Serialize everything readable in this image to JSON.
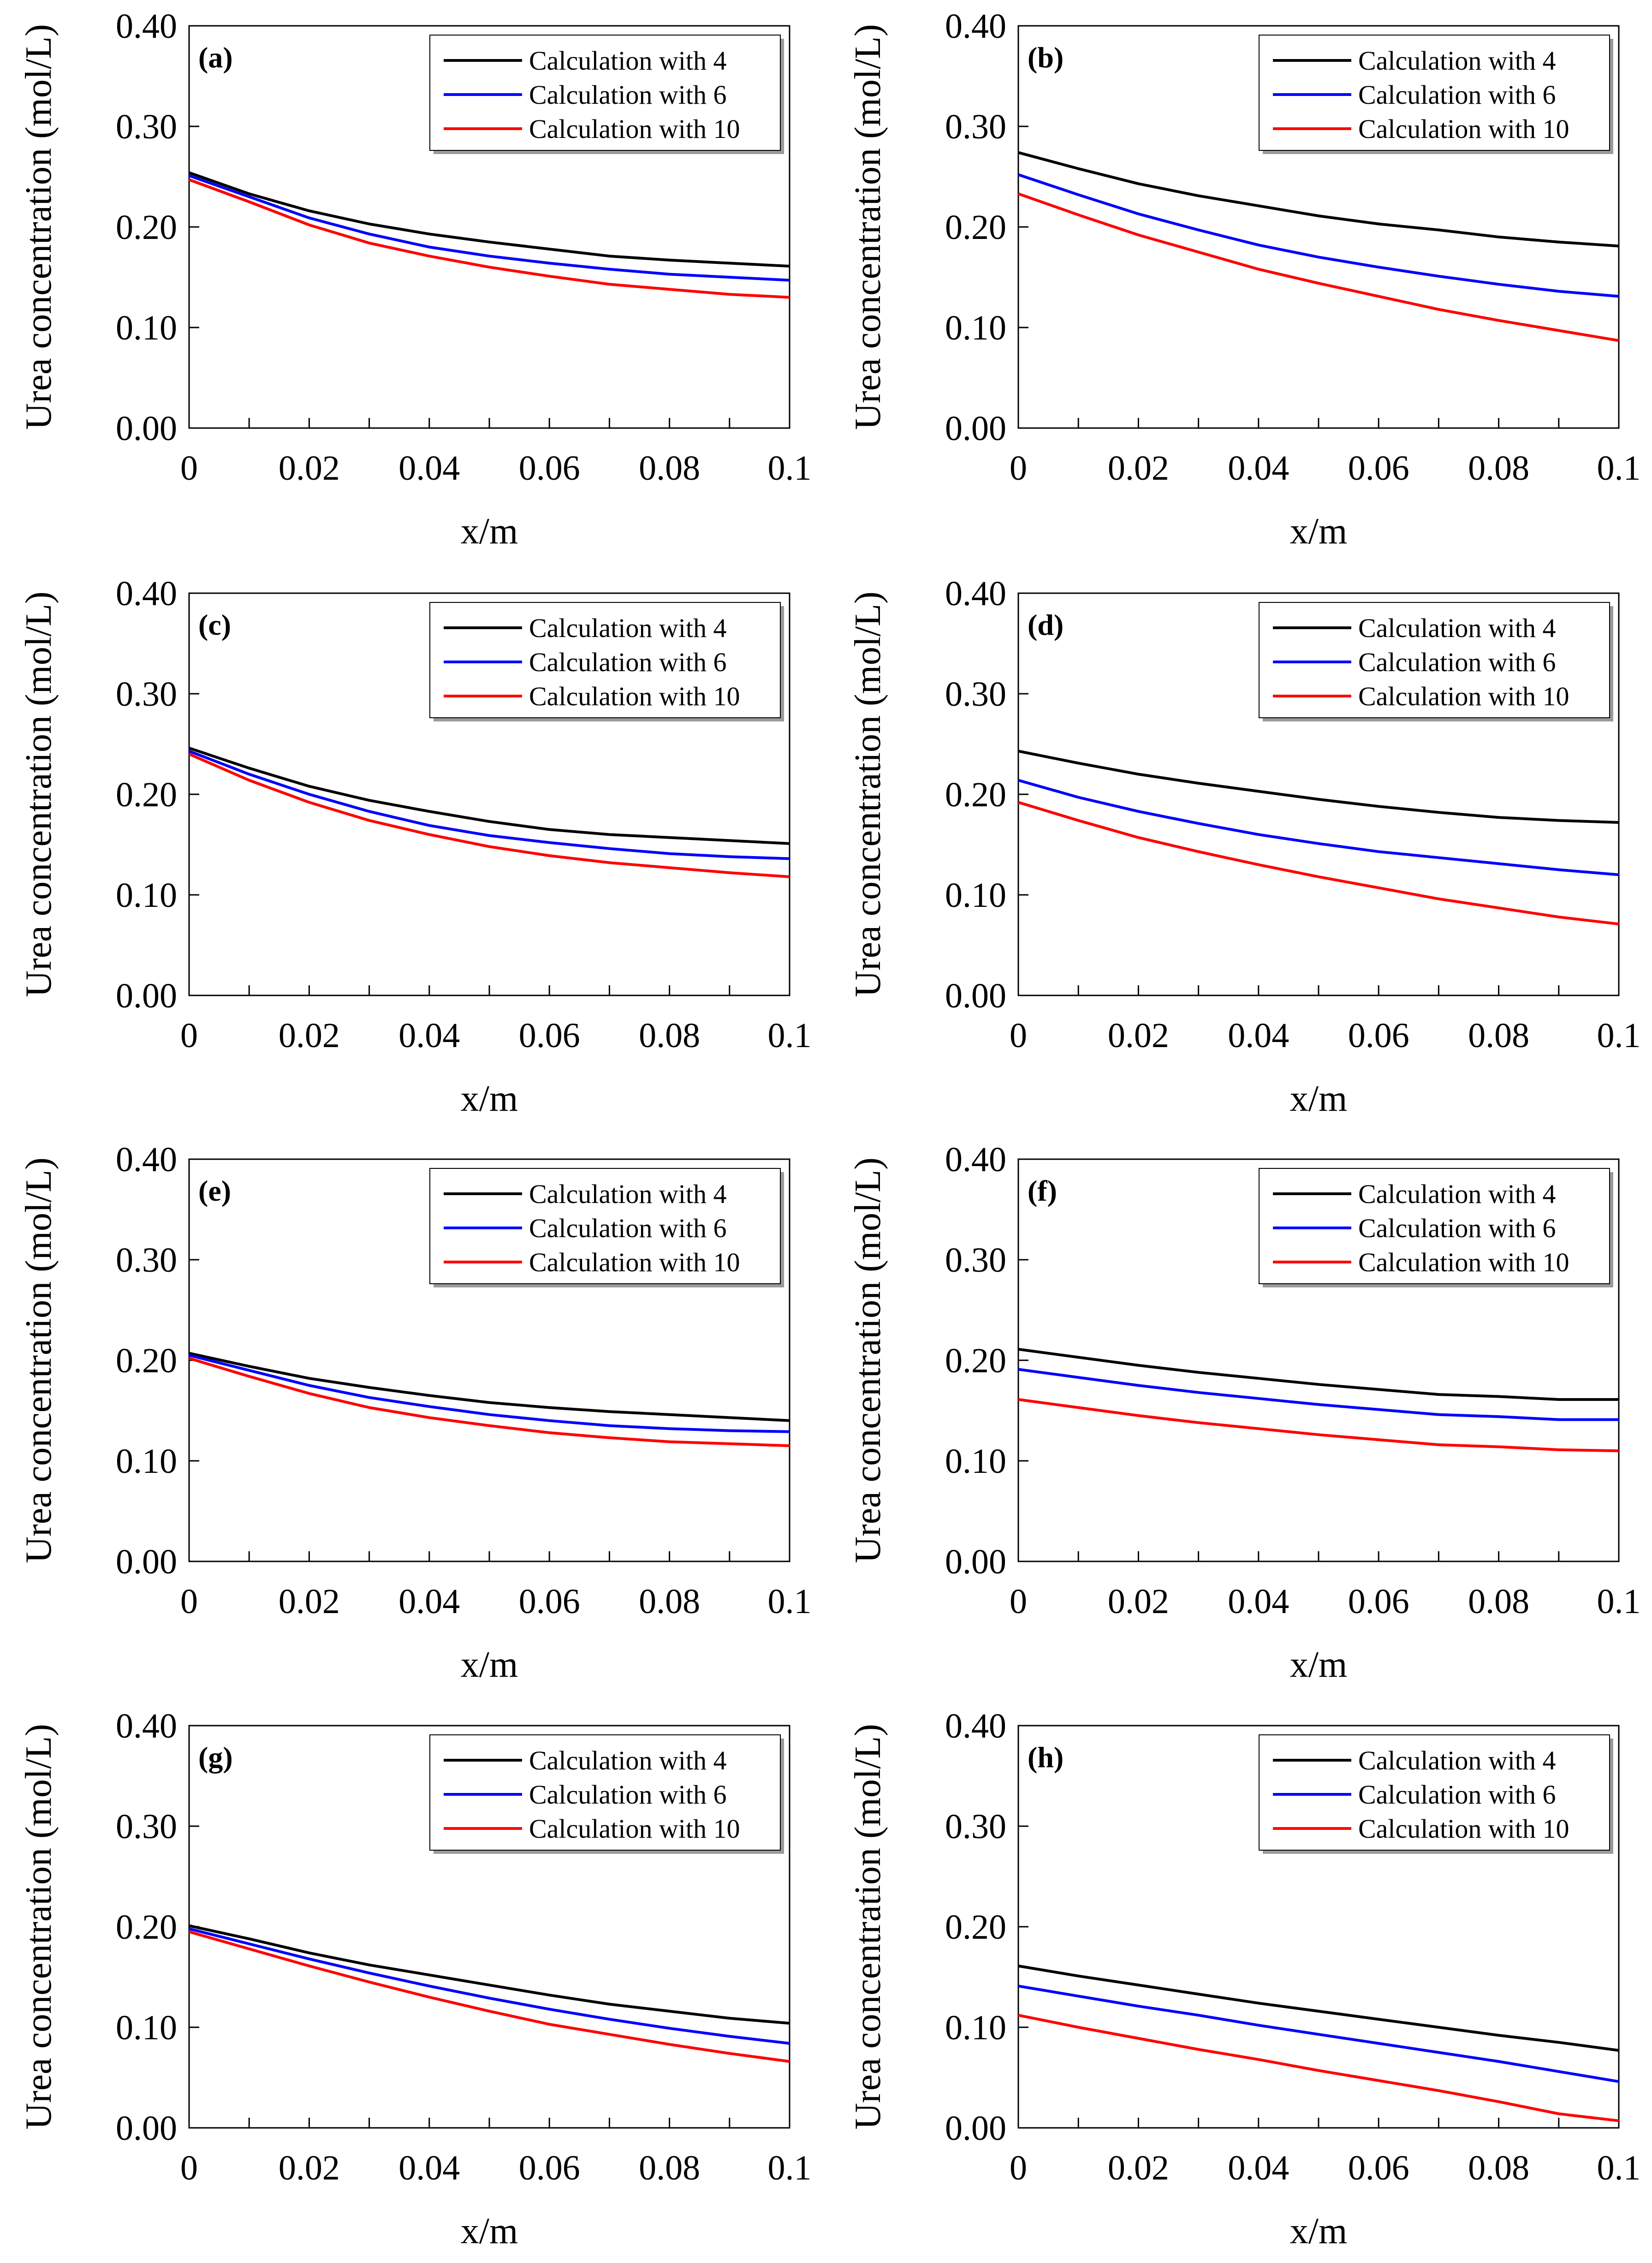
{
  "chart_data": [
    {
      "type": "line",
      "panel_label": "(a)",
      "xlabel": "x/m",
      "ylabel": "Urea concentration (mol/L)",
      "x_ticks": [
        "0",
        "0.02",
        "0.04",
        "0.06",
        "0.08",
        "0.1"
      ],
      "y_ticks": [
        "0.00",
        "0.10",
        "0.20",
        "0.30",
        "0.40"
      ],
      "xlim": [
        0,
        0.1
      ],
      "ylim": [
        0,
        0.4
      ],
      "legend_position": "top-right",
      "x": [
        0,
        0.01,
        0.02,
        0.03,
        0.04,
        0.05,
        0.06,
        0.07,
        0.08,
        0.09,
        0.1
      ],
      "series": [
        {
          "name": "Calculation with 4",
          "color": "#000000",
          "values": [
            0.254,
            0.233,
            0.216,
            0.203,
            0.193,
            0.185,
            0.178,
            0.171,
            0.167,
            0.164,
            0.161
          ]
        },
        {
          "name": "Calculation with 6",
          "color": "#0000ff",
          "values": [
            0.251,
            0.23,
            0.209,
            0.193,
            0.18,
            0.171,
            0.164,
            0.158,
            0.153,
            0.15,
            0.147
          ]
        },
        {
          "name": "Calculation with 10",
          "color": "#ff0000",
          "values": [
            0.247,
            0.225,
            0.202,
            0.184,
            0.171,
            0.16,
            0.151,
            0.143,
            0.138,
            0.133,
            0.13
          ]
        }
      ]
    },
    {
      "type": "line",
      "panel_label": "(b)",
      "xlabel": "x/m",
      "ylabel": "Urea concentration (mol/L)",
      "x_ticks": [
        "0",
        "0.02",
        "0.04",
        "0.06",
        "0.08",
        "0.1"
      ],
      "y_ticks": [
        "0.00",
        "0.10",
        "0.20",
        "0.30",
        "0.40"
      ],
      "xlim": [
        0,
        0.1
      ],
      "ylim": [
        0,
        0.4
      ],
      "legend_position": "top-right",
      "x": [
        0,
        0.01,
        0.02,
        0.03,
        0.04,
        0.05,
        0.06,
        0.07,
        0.08,
        0.09,
        0.1
      ],
      "series": [
        {
          "name": "Calculation with 4",
          "color": "#000000",
          "values": [
            0.274,
            0.258,
            0.243,
            0.231,
            0.221,
            0.211,
            0.203,
            0.197,
            0.19,
            0.185,
            0.181
          ]
        },
        {
          "name": "Calculation with 6",
          "color": "#0000ff",
          "values": [
            0.252,
            0.232,
            0.213,
            0.197,
            0.182,
            0.17,
            0.16,
            0.151,
            0.143,
            0.136,
            0.131
          ]
        },
        {
          "name": "Calculation with 10",
          "color": "#ff0000",
          "values": [
            0.233,
            0.212,
            0.192,
            0.175,
            0.158,
            0.144,
            0.131,
            0.118,
            0.107,
            0.097,
            0.087
          ]
        }
      ]
    },
    {
      "type": "line",
      "panel_label": "(c)",
      "xlabel": "x/m",
      "ylabel": "Urea concentration (mol/L)",
      "x_ticks": [
        "0",
        "0.02",
        "0.04",
        "0.06",
        "0.08",
        "0.1"
      ],
      "y_ticks": [
        "0.00",
        "0.10",
        "0.20",
        "0.30",
        "0.40"
      ],
      "xlim": [
        0,
        0.1
      ],
      "ylim": [
        0,
        0.4
      ],
      "legend_position": "top-right",
      "x": [
        0,
        0.01,
        0.02,
        0.03,
        0.04,
        0.05,
        0.06,
        0.07,
        0.08,
        0.09,
        0.1
      ],
      "series": [
        {
          "name": "Calculation with 4",
          "color": "#000000",
          "values": [
            0.246,
            0.226,
            0.208,
            0.194,
            0.183,
            0.173,
            0.165,
            0.16,
            0.157,
            0.154,
            0.151
          ]
        },
        {
          "name": "Calculation with 6",
          "color": "#0000ff",
          "values": [
            0.243,
            0.22,
            0.2,
            0.183,
            0.169,
            0.159,
            0.152,
            0.146,
            0.141,
            0.138,
            0.136
          ]
        },
        {
          "name": "Calculation with 10",
          "color": "#ff0000",
          "values": [
            0.24,
            0.214,
            0.192,
            0.174,
            0.16,
            0.148,
            0.139,
            0.132,
            0.127,
            0.122,
            0.118
          ]
        }
      ]
    },
    {
      "type": "line",
      "panel_label": "(d)",
      "xlabel": "x/m",
      "ylabel": "Urea concentration (mol/L)",
      "x_ticks": [
        "0",
        "0.02",
        "0.04",
        "0.06",
        "0.08",
        "0.1"
      ],
      "y_ticks": [
        "0.00",
        "0.10",
        "0.20",
        "0.30",
        "0.40"
      ],
      "xlim": [
        0,
        0.1
      ],
      "ylim": [
        0,
        0.4
      ],
      "legend_position": "top-right",
      "x": [
        0,
        0.01,
        0.02,
        0.03,
        0.04,
        0.05,
        0.06,
        0.07,
        0.08,
        0.09,
        0.1
      ],
      "series": [
        {
          "name": "Calculation with 4",
          "color": "#000000",
          "values": [
            0.243,
            0.231,
            0.22,
            0.211,
            0.203,
            0.195,
            0.188,
            0.182,
            0.177,
            0.174,
            0.172
          ]
        },
        {
          "name": "Calculation with 6",
          "color": "#0000ff",
          "values": [
            0.214,
            0.197,
            0.183,
            0.171,
            0.16,
            0.151,
            0.143,
            0.137,
            0.131,
            0.125,
            0.12
          ]
        },
        {
          "name": "Calculation with 10",
          "color": "#ff0000",
          "values": [
            0.192,
            0.174,
            0.157,
            0.143,
            0.13,
            0.118,
            0.107,
            0.096,
            0.087,
            0.078,
            0.071
          ]
        }
      ]
    },
    {
      "type": "line",
      "panel_label": "(e)",
      "xlabel": "x/m",
      "ylabel": "Urea concentration (mol/L)",
      "x_ticks": [
        "0",
        "0.02",
        "0.04",
        "0.06",
        "0.08",
        "0.1"
      ],
      "y_ticks": [
        "0.00",
        "0.10",
        "0.20",
        "0.30",
        "0.40"
      ],
      "xlim": [
        0,
        0.1
      ],
      "ylim": [
        0,
        0.4
      ],
      "legend_position": "top-right",
      "x": [
        0,
        0.01,
        0.02,
        0.03,
        0.04,
        0.05,
        0.06,
        0.07,
        0.08,
        0.09,
        0.1
      ],
      "series": [
        {
          "name": "Calculation with 4",
          "color": "#000000",
          "values": [
            0.207,
            0.194,
            0.182,
            0.173,
            0.165,
            0.158,
            0.153,
            0.149,
            0.146,
            0.143,
            0.14
          ]
        },
        {
          "name": "Calculation with 6",
          "color": "#0000ff",
          "values": [
            0.205,
            0.19,
            0.175,
            0.163,
            0.154,
            0.146,
            0.14,
            0.135,
            0.132,
            0.13,
            0.129
          ]
        },
        {
          "name": "Calculation with 10",
          "color": "#ff0000",
          "values": [
            0.202,
            0.184,
            0.167,
            0.153,
            0.143,
            0.135,
            0.128,
            0.123,
            0.119,
            0.117,
            0.115
          ]
        }
      ]
    },
    {
      "type": "line",
      "panel_label": "(f)",
      "xlabel": "x/m",
      "ylabel": "Urea concentration (mol/L)",
      "x_ticks": [
        "0",
        "0.02",
        "0.04",
        "0.06",
        "0.08",
        "0.1"
      ],
      "y_ticks": [
        "0.00",
        "0.10",
        "0.20",
        "0.30",
        "0.40"
      ],
      "xlim": [
        0,
        0.1
      ],
      "ylim": [
        0,
        0.4
      ],
      "legend_position": "top-right",
      "x": [
        0,
        0.01,
        0.02,
        0.03,
        0.04,
        0.05,
        0.06,
        0.07,
        0.08,
        0.09,
        0.1
      ],
      "series": [
        {
          "name": "Calculation with 4",
          "color": "#000000",
          "values": [
            0.211,
            0.203,
            0.195,
            0.188,
            0.182,
            0.176,
            0.171,
            0.166,
            0.164,
            0.161,
            0.161
          ]
        },
        {
          "name": "Calculation with 6",
          "color": "#0000ff",
          "values": [
            0.191,
            0.183,
            0.175,
            0.168,
            0.162,
            0.156,
            0.151,
            0.146,
            0.144,
            0.141,
            0.141
          ]
        },
        {
          "name": "Calculation with 10",
          "color": "#ff0000",
          "values": [
            0.161,
            0.153,
            0.145,
            0.138,
            0.132,
            0.126,
            0.121,
            0.116,
            0.114,
            0.111,
            0.11
          ]
        }
      ]
    },
    {
      "type": "line",
      "panel_label": "(g)",
      "xlabel": "x/m",
      "ylabel": "Urea concentration (mol/L)",
      "x_ticks": [
        "0",
        "0.02",
        "0.04",
        "0.06",
        "0.08",
        "0.1"
      ],
      "y_ticks": [
        "0.00",
        "0.10",
        "0.20",
        "0.30",
        "0.40"
      ],
      "xlim": [
        0,
        0.1
      ],
      "ylim": [
        0,
        0.4
      ],
      "legend_position": "top-right",
      "x": [
        0,
        0.01,
        0.02,
        0.03,
        0.04,
        0.05,
        0.06,
        0.07,
        0.08,
        0.09,
        0.1
      ],
      "series": [
        {
          "name": "Calculation with 4",
          "color": "#000000",
          "values": [
            0.201,
            0.188,
            0.174,
            0.162,
            0.152,
            0.142,
            0.132,
            0.123,
            0.116,
            0.109,
            0.104
          ]
        },
        {
          "name": "Calculation with 6",
          "color": "#0000ff",
          "values": [
            0.198,
            0.183,
            0.168,
            0.154,
            0.141,
            0.129,
            0.118,
            0.108,
            0.099,
            0.091,
            0.084
          ]
        },
        {
          "name": "Calculation with 10",
          "color": "#ff0000",
          "values": [
            0.195,
            0.178,
            0.161,
            0.145,
            0.13,
            0.116,
            0.103,
            0.093,
            0.083,
            0.074,
            0.066
          ]
        }
      ]
    },
    {
      "type": "line",
      "panel_label": "(h)",
      "xlabel": "x/m",
      "ylabel": "Urea concentration (mol/L)",
      "x_ticks": [
        "0",
        "0.02",
        "0.04",
        "0.06",
        "0.08",
        "0.1"
      ],
      "y_ticks": [
        "0.00",
        "0.10",
        "0.20",
        "0.30",
        "0.40"
      ],
      "xlim": [
        0,
        0.1
      ],
      "ylim": [
        0,
        0.4
      ],
      "legend_position": "top-right",
      "x": [
        0,
        0.01,
        0.02,
        0.03,
        0.04,
        0.05,
        0.06,
        0.07,
        0.08,
        0.09,
        0.1
      ],
      "series": [
        {
          "name": "Calculation with 4",
          "color": "#000000",
          "values": [
            0.161,
            0.151,
            0.142,
            0.133,
            0.124,
            0.116,
            0.108,
            0.1,
            0.092,
            0.085,
            0.077
          ]
        },
        {
          "name": "Calculation with 6",
          "color": "#0000ff",
          "values": [
            0.141,
            0.131,
            0.121,
            0.112,
            0.102,
            0.093,
            0.084,
            0.075,
            0.066,
            0.056,
            0.046
          ]
        },
        {
          "name": "Calculation with 10",
          "color": "#ff0000",
          "values": [
            0.112,
            0.1,
            0.089,
            0.078,
            0.068,
            0.057,
            0.047,
            0.037,
            0.026,
            0.014,
            0.007
          ]
        }
      ]
    }
  ]
}
